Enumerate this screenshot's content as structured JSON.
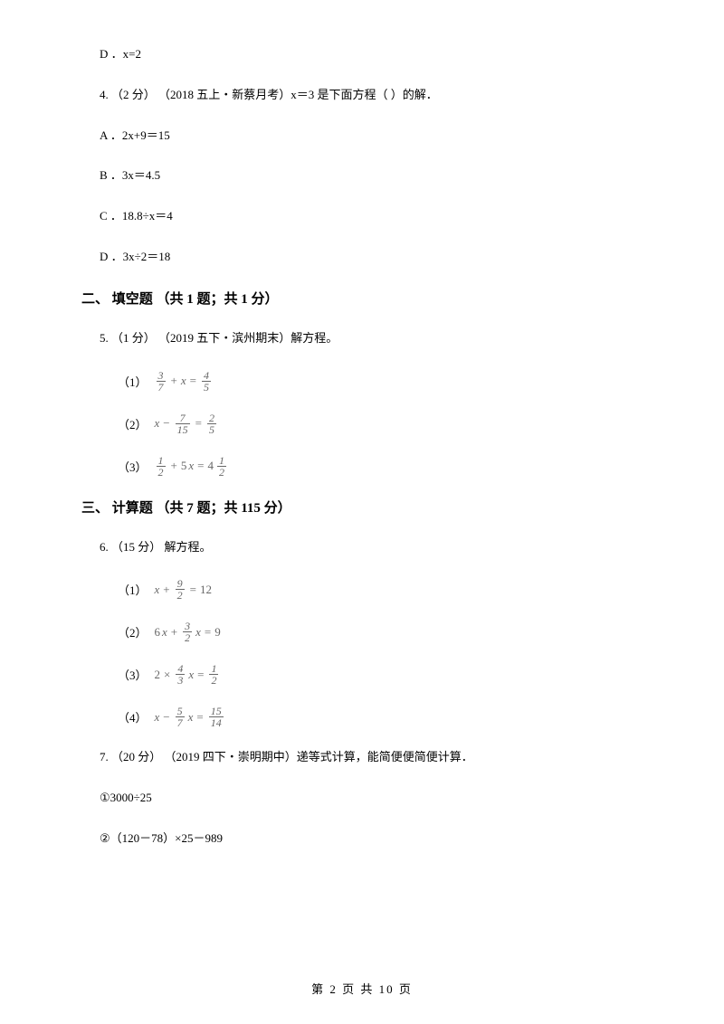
{
  "previous_option": "D ．x=2",
  "q4": {
    "text": "4.  （2 分） （2018 五上・新蔡月考）x＝3 是下面方程（     ）的解．",
    "options": {
      "a": "A ．2x+9＝15",
      "b": "B ．3x＝4.5",
      "c": "C ．18.8÷x＝4",
      "d": "D ．3x÷2＝18"
    }
  },
  "section2": "二、 填空题 （共 1 题；共 1 分）",
  "q5": {
    "text": "5.  （1 分） （2019 五下・滨州期末）解方程。",
    "eq1_label": "（1）",
    "eq2_label": "（2）",
    "eq3_label": "（3）"
  },
  "section3": "三、 计算题 （共 7 题；共 115 分）",
  "q6": {
    "text": "6.  （15 分）  解方程。",
    "eq1_label": "（1）",
    "eq2_label": "（2）",
    "eq3_label": "（3）",
    "eq4_label": "（4）"
  },
  "q7": {
    "text": "7.  （20 分） （2019 四下・崇明期中）递等式计算，能简便便简便计算．",
    "item1": "①3000÷25",
    "item2": "②（120－78）×25－989"
  },
  "footer": "第 2 页 共 10 页"
}
